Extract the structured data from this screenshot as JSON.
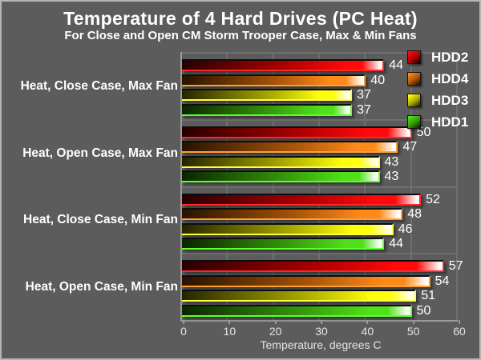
{
  "title": "Temperature of 4 Hard Drives (PC Heat)",
  "subtitle": "For Close and Open CM Storm Trooper Case, Max & Min Fans",
  "chart_data": {
    "type": "bar",
    "orientation": "horizontal",
    "title": "Temperature of 4 Hard Drives (PC Heat)",
    "subtitle": "For Close and Open CM Storm Trooper Case, Max & Min Fans",
    "categories": [
      "Heat, Close Case, Max Fan",
      "Heat, Open Case, Max Fan",
      "Heat, Close Case, Min Fan",
      "Heat, Open Case, Min Fan"
    ],
    "series": [
      {
        "name": "HDD2",
        "values": [
          44,
          50,
          52,
          57
        ],
        "colors": {
          "dark": "#250000",
          "main": "#ae0000",
          "bright": "#ff0a0a",
          "edge": "#ff2626"
        }
      },
      {
        "name": "HDD4",
        "values": [
          40,
          47,
          48,
          54
        ],
        "colors": {
          "dark": "#251200",
          "main": "#a85408",
          "bright": "#ff8a1a",
          "edge": "#ffa033"
        }
      },
      {
        "name": "HDD3",
        "values": [
          37,
          43,
          46,
          51
        ],
        "colors": {
          "dark": "#242400",
          "main": "#a8a800",
          "bright": "#ffff0d",
          "edge": "#ffff42"
        }
      },
      {
        "name": "HDD1",
        "values": [
          37,
          43,
          44,
          50
        ],
        "colors": {
          "dark": "#0b2400",
          "main": "#35960a",
          "bright": "#4fe01a",
          "edge": "#5eff30"
        }
      }
    ],
    "xlabel": "Temperature, degrees C",
    "xlim": [
      0,
      60
    ],
    "xticks": [
      0,
      10,
      20,
      30,
      40,
      50,
      60
    ],
    "legend_position": "top-right",
    "grid": true,
    "background_color": "#5c5c5c",
    "gridline_color": "#6f6f6f",
    "axis_color": "#9a9a9a",
    "text_color": "#ffffff"
  }
}
